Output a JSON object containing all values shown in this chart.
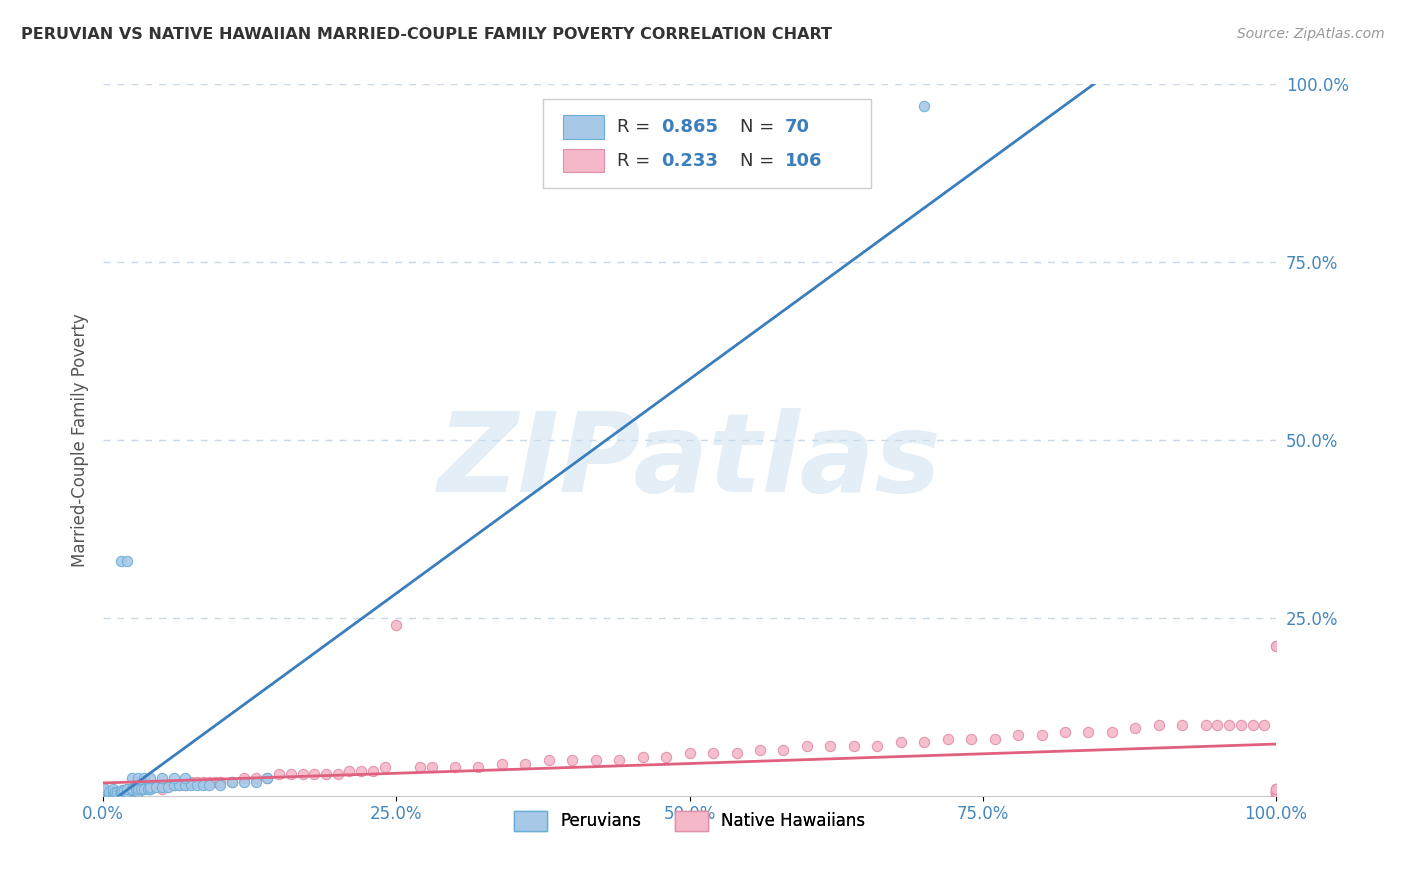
{
  "title": "PERUVIAN VS NATIVE HAWAIIAN MARRIED-COUPLE FAMILY POVERTY CORRELATION CHART",
  "source_text": "Source: ZipAtlas.com",
  "ylabel": "Married-Couple Family Poverty",
  "watermark": "ZIPatlas",
  "xlim": [
    0,
    1
  ],
  "ylim": [
    0,
    1
  ],
  "xtick_labels": [
    "0.0%",
    "25.0%",
    "50.0%",
    "75.0%",
    "100.0%"
  ],
  "xtick_vals": [
    0,
    0.25,
    0.5,
    0.75,
    1.0
  ],
  "ytick_labels": [
    "25.0%",
    "50.0%",
    "75.0%",
    "100.0%"
  ],
  "ytick_vals": [
    0.25,
    0.5,
    0.75,
    1.0
  ],
  "peruvian_color": "#a8c8e8",
  "peruvian_edge": "#6aaed6",
  "peruvian_line_color": "#3a7ebe",
  "native_hawaiian_color": "#f4b8c8",
  "native_hawaiian_edge": "#e090aa",
  "native_hawaiian_line_color": "#e06080",
  "background_color": "#ffffff",
  "grid_color": "#c8d8e8",
  "title_color": "#333333",
  "axis_label_color": "#555555",
  "tick_label_color": "#4488bb",
  "peruvian_scatter_x": [
    0.0,
    0.0,
    0.0,
    0.0,
    0.0,
    0.0,
    0.0,
    0.0,
    0.0,
    0.0,
    0.0,
    0.0,
    0.0,
    0.0,
    0.0,
    0.0,
    0.0,
    0.0,
    0.0,
    0.0,
    0.005,
    0.005,
    0.008,
    0.008,
    0.008,
    0.01,
    0.01,
    0.012,
    0.014,
    0.015,
    0.016,
    0.018,
    0.02,
    0.02,
    0.02,
    0.025,
    0.025,
    0.028,
    0.03,
    0.03,
    0.032,
    0.035,
    0.038,
    0.04,
    0.04,
    0.045,
    0.05,
    0.055,
    0.06,
    0.065,
    0.07,
    0.075,
    0.08,
    0.085,
    0.09,
    0.1,
    0.11,
    0.12,
    0.13,
    0.14,
    0.015,
    0.02,
    0.025,
    0.03,
    0.035,
    0.04,
    0.05,
    0.06,
    0.07,
    0.7
  ],
  "peruvian_scatter_y": [
    0.0,
    0.0,
    0.0,
    0.0,
    0.0,
    0.0,
    0.0,
    0.0,
    0.0,
    0.0,
    0.0,
    0.0,
    0.0,
    0.0,
    0.005,
    0.005,
    0.008,
    0.01,
    0.01,
    0.012,
    0.0,
    0.005,
    0.0,
    0.005,
    0.01,
    0.0,
    0.005,
    0.005,
    0.005,
    0.005,
    0.008,
    0.008,
    0.0,
    0.005,
    0.01,
    0.008,
    0.01,
    0.01,
    0.005,
    0.01,
    0.01,
    0.01,
    0.01,
    0.01,
    0.012,
    0.012,
    0.012,
    0.012,
    0.015,
    0.015,
    0.015,
    0.015,
    0.015,
    0.015,
    0.015,
    0.015,
    0.02,
    0.02,
    0.02,
    0.025,
    0.33,
    0.33,
    0.025,
    0.025,
    0.025,
    0.025,
    0.025,
    0.025,
    0.025,
    0.97
  ],
  "native_hawaiian_scatter_x": [
    0.0,
    0.0,
    0.0,
    0.0,
    0.0,
    0.0,
    0.0,
    0.0,
    0.005,
    0.005,
    0.008,
    0.01,
    0.01,
    0.012,
    0.015,
    0.02,
    0.02,
    0.025,
    0.025,
    0.03,
    0.03,
    0.035,
    0.04,
    0.04,
    0.045,
    0.05,
    0.05,
    0.055,
    0.06,
    0.065,
    0.07,
    0.075,
    0.08,
    0.085,
    0.09,
    0.095,
    0.1,
    0.11,
    0.12,
    0.13,
    0.14,
    0.15,
    0.16,
    0.17,
    0.18,
    0.19,
    0.2,
    0.21,
    0.22,
    0.23,
    0.24,
    0.25,
    0.27,
    0.28,
    0.3,
    0.32,
    0.34,
    0.36,
    0.38,
    0.4,
    0.42,
    0.44,
    0.46,
    0.48,
    0.5,
    0.52,
    0.54,
    0.56,
    0.58,
    0.6,
    0.62,
    0.64,
    0.66,
    0.68,
    0.7,
    0.72,
    0.74,
    0.76,
    0.78,
    0.8,
    0.82,
    0.84,
    0.86,
    0.88,
    0.9,
    0.92,
    0.94,
    0.95,
    0.96,
    0.97,
    0.98,
    0.99,
    1.0,
    1.0,
    1.0,
    1.0,
    1.0,
    1.0,
    1.0,
    1.0,
    1.0,
    1.0,
    1.0,
    1.0,
    1.0,
    1.0,
    1.0
  ],
  "native_hawaiian_scatter_y": [
    0.0,
    0.0,
    0.0,
    0.0,
    0.005,
    0.005,
    0.008,
    0.01,
    0.0,
    0.005,
    0.005,
    0.0,
    0.005,
    0.005,
    0.005,
    0.005,
    0.01,
    0.005,
    0.01,
    0.005,
    0.01,
    0.01,
    0.01,
    0.015,
    0.015,
    0.01,
    0.015,
    0.015,
    0.015,
    0.015,
    0.015,
    0.02,
    0.02,
    0.02,
    0.02,
    0.02,
    0.02,
    0.02,
    0.025,
    0.025,
    0.025,
    0.03,
    0.03,
    0.03,
    0.03,
    0.03,
    0.03,
    0.035,
    0.035,
    0.035,
    0.04,
    0.24,
    0.04,
    0.04,
    0.04,
    0.04,
    0.045,
    0.045,
    0.05,
    0.05,
    0.05,
    0.05,
    0.055,
    0.055,
    0.06,
    0.06,
    0.06,
    0.065,
    0.065,
    0.07,
    0.07,
    0.07,
    0.07,
    0.075,
    0.075,
    0.08,
    0.08,
    0.08,
    0.085,
    0.085,
    0.09,
    0.09,
    0.09,
    0.095,
    0.1,
    0.1,
    0.1,
    0.1,
    0.1,
    0.1,
    0.1,
    0.1,
    0.0,
    0.0,
    0.0,
    0.005,
    0.005,
    0.005,
    0.005,
    0.005,
    0.005,
    0.005,
    0.01,
    0.01,
    0.01,
    0.21,
    0.21
  ],
  "peru_line_x0": 0.0,
  "peru_line_y0": -0.02,
  "peru_line_x1": 0.75,
  "peru_line_y1": 1.02,
  "nh_line_x0": 0.0,
  "nh_line_y0": 0.0,
  "nh_line_x1": 1.0,
  "nh_line_y1": 0.1
}
